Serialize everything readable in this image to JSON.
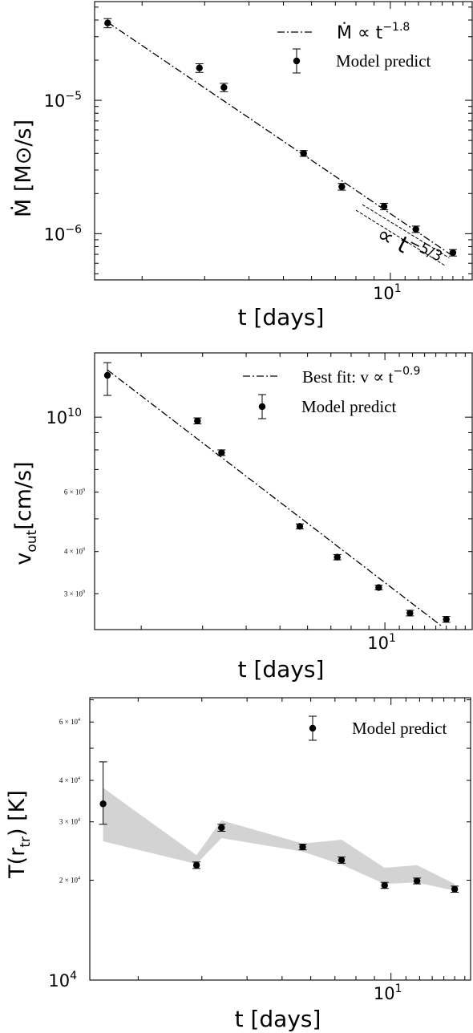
{
  "chart_data": [
    {
      "type": "scatter",
      "xlabel": "t [days]",
      "ylabel": "Ṁ [M⊙/s]",
      "xscale": "log",
      "yscale": "log",
      "xlim": [
        1.47,
        17.0
      ],
      "ylim": [
        4.5e-07,
        5.5e-05
      ],
      "xticks": [
        {
          "value": 10,
          "label": "10",
          "sup": "1"
        }
      ],
      "yticks": [
        {
          "value": 1e-05,
          "label": "10",
          "sup": "−5"
        },
        {
          "value": 1e-06,
          "label": "10",
          "sup": "−6"
        }
      ],
      "legend_position": "top-right",
      "legend": [
        {
          "kind": "line",
          "label": "Ṁ ∝ t",
          "sup": "−1.8"
        },
        {
          "kind": "marker",
          "label": "Model predict"
        }
      ],
      "series": [
        {
          "name": "Model predict",
          "x": [
            1.6,
            2.9,
            3.4,
            5.7,
            7.3,
            9.6,
            11.8,
            15.0
          ],
          "y": [
            3.8e-05,
            1.75e-05,
            1.25e-05,
            4e-06,
            2.25e-06,
            1.6e-06,
            1.08e-06,
            7.2e-07
          ],
          "yerr_low": [
            3.5e-05,
            1.62e-05,
            1.16e-05,
            3.8e-06,
            2.12e-06,
            1.51e-06,
            1.02e-06,
            6.8e-07
          ],
          "yerr_high": [
            4.1e-05,
            1.88e-05,
            1.34e-05,
            4.2e-06,
            2.38e-06,
            1.69e-06,
            1.14e-06,
            7.6e-07
          ]
        }
      ],
      "fit_line": {
        "x": [
          1.6,
          15.0
        ],
        "y": [
          3.85e-05,
          6.8e-07
        ],
        "style": "dashdot"
      },
      "annotation": {
        "text": "∝ t",
        "sup": "−5/3",
        "line_x": [
          8.0,
          14.2
        ],
        "line_y": [
          1.5e-06,
          5.8e-07
        ]
      }
    },
    {
      "type": "scatter",
      "xlabel": "t [days]",
      "ylabel": "v",
      "ylabel_sub": "out",
      "ylabel_unit": "[cm/s]",
      "xscale": "log",
      "yscale": "log",
      "xlim": [
        1.47,
        17.8
      ],
      "ylim": [
        2350000000.0,
        15500000000.0
      ],
      "xticks": [
        {
          "value": 10,
          "label": "10",
          "sup": "1"
        }
      ],
      "yticks": [
        {
          "value": 10000000000.0,
          "label": "10",
          "sup": "10",
          "size": "major"
        },
        {
          "value": 6000000000.0,
          "label": "6 × 10",
          "sup": "9",
          "size": "minor"
        },
        {
          "value": 4000000000.0,
          "label": "4 × 10",
          "sup": "9",
          "size": "minor"
        },
        {
          "value": 3000000000.0,
          "label": "3 × 10",
          "sup": "9",
          "size": "minor"
        }
      ],
      "legend_position": "top-right",
      "legend": [
        {
          "kind": "line",
          "label": "Best fit: v ∝ t",
          "sup": "−0.9"
        },
        {
          "kind": "marker",
          "label": "Model predict"
        }
      ],
      "series": [
        {
          "name": "Model predict",
          "x": [
            1.6,
            2.9,
            3.4,
            5.7,
            7.3,
            9.6,
            11.8,
            15.0
          ],
          "y": [
            13300000000.0,
            9750000000.0,
            7850000000.0,
            4750000000.0,
            3850000000.0,
            3130000000.0,
            2630000000.0,
            2520000000.0
          ],
          "yerr_low": [
            11600000000.0,
            9550000000.0,
            7700000000.0,
            4670000000.0,
            3780000000.0,
            3080000000.0,
            2580000000.0,
            2470000000.0
          ],
          "yerr_high": [
            14500000000.0,
            9950000000.0,
            8000000000.0,
            4830000000.0,
            3920000000.0,
            3180000000.0,
            2680000000.0,
            2570000000.0
          ]
        }
      ],
      "fit_line": {
        "x": [
          1.6,
          14.6
        ],
        "y": [
          13800000000.0,
          2400000000.0
        ],
        "style": "dashdot"
      }
    },
    {
      "type": "scatter",
      "xlabel": "t [days]",
      "ylabel": "T(r",
      "ylabel_sub": "tr",
      "ylabel_unit": ") [K]",
      "xscale": "log",
      "yscale": "log",
      "xlim": [
        1.47,
        16.6
      ],
      "ylim": [
        10000.0,
        71000.0
      ],
      "xticks": [
        {
          "value": 10,
          "label": "10",
          "sup": "1"
        }
      ],
      "yticks": [
        {
          "value": 10000.0,
          "label": "10",
          "sup": "4",
          "size": "major"
        },
        {
          "value": 60000.0,
          "label": "6 × 10",
          "sup": "4",
          "size": "minor"
        },
        {
          "value": 40000.0,
          "label": "4 × 10",
          "sup": "4",
          "size": "minor"
        },
        {
          "value": 30000.0,
          "label": "3 × 10",
          "sup": "4",
          "size": "minor"
        },
        {
          "value": 20000.0,
          "label": "2 × 10",
          "sup": "4",
          "size": "minor"
        }
      ],
      "legend_position": "top-right",
      "legend": [
        {
          "kind": "marker",
          "label": "Model predict"
        }
      ],
      "band_color": "#d3d3d3",
      "band": {
        "x": [
          1.6,
          2.9,
          3.4,
          5.7,
          7.3,
          9.6,
          11.8,
          15.0
        ],
        "upper": [
          38000.0,
          23800.0,
          30300.0,
          25800.0,
          26500.0,
          21800.0,
          22200.0,
          19500.0
        ],
        "lower": [
          26200.0,
          22400.0,
          26800.0,
          24400.0,
          22300.0,
          19500.0,
          19700.0,
          18600.0
        ]
      },
      "series": [
        {
          "name": "Model predict",
          "x": [
            1.6,
            2.9,
            3.4,
            5.7,
            7.3,
            9.6,
            11.8,
            15.0
          ],
          "y": [
            34000.0,
            22200.0,
            28800.0,
            25200.0,
            23000.0,
            19300.0,
            19900.0,
            18800.0
          ],
          "yerr_low": [
            29500.0,
            21700.0,
            28100.0,
            24700.0,
            22500.0,
            18900.0,
            19500.0,
            18400.0
          ],
          "yerr_high": [
            45500.0,
            22700.0,
            29500.0,
            25700.0,
            23500.0,
            19700.0,
            20300.0,
            19200.0
          ]
        }
      ]
    }
  ]
}
